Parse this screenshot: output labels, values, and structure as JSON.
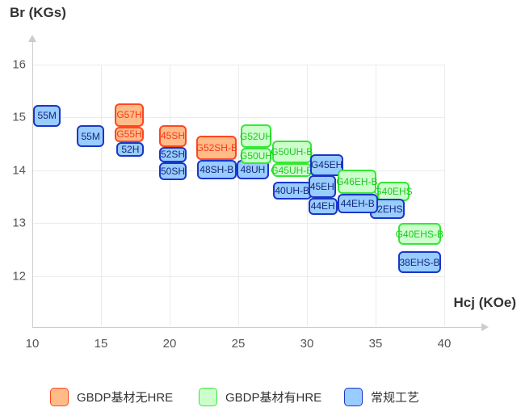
{
  "chart_data": {
    "type": "scatter",
    "title": "",
    "xlabel": "Hcj (KOe)",
    "ylabel": "Br (KGs)",
    "x_ticks": [
      10,
      15,
      20,
      25,
      30,
      35,
      40
    ],
    "y_ticks": [
      16,
      15,
      14,
      13,
      12
    ],
    "xlim": [
      10,
      43
    ],
    "ylim": [
      11.1,
      16.5
    ],
    "grid": true,
    "legend_position": "bottom",
    "series": [
      {
        "key": "gbdp_no_hre",
        "label": "GBDP基材无HRE",
        "fill": "#FFBB88",
        "border": "#FF4720",
        "text": "#F5391B"
      },
      {
        "key": "gbdp_hre",
        "label": "GBDP基材有HRE",
        "fill": "#CCFFCC",
        "border": "#35E835",
        "text": "#1FC722"
      },
      {
        "key": "conventional",
        "label": "常规工艺",
        "fill": "#99CCFF",
        "border": "#1A36C8",
        "text": "#15267B"
      }
    ],
    "grades": [
      {
        "label": "55M",
        "series": "conventional",
        "hcj": [
          10.08,
          12.06
        ],
        "br": [
          14.82,
          15.24
        ]
      },
      {
        "label": "55M",
        "series": "conventional",
        "hcj": [
          13.24,
          15.25
        ],
        "br": [
          14.44,
          14.85
        ]
      },
      {
        "label": "52H",
        "series": "conventional",
        "hcj": [
          16.14,
          18.14
        ],
        "br": [
          14.25,
          14.53
        ]
      },
      {
        "label": "G55H",
        "series": "gbdp_no_hre",
        "hcj": [
          16.02,
          18.1
        ],
        "br": [
          14.53,
          14.83
        ]
      },
      {
        "label": "G57H",
        "series": "gbdp_no_hre",
        "hcj": [
          16.02,
          18.1
        ],
        "br": [
          14.83,
          15.26
        ]
      },
      {
        "label": "50SH",
        "series": "conventional",
        "hcj": [
          19.25,
          21.22
        ],
        "br": [
          13.82,
          14.15
        ]
      },
      {
        "label": "52SH",
        "series": "conventional",
        "hcj": [
          19.25,
          21.22
        ],
        "br": [
          14.15,
          14.44
        ]
      },
      {
        "label": "45SH",
        "series": "gbdp_no_hre",
        "hcj": [
          19.25,
          21.22
        ],
        "br": [
          14.44,
          14.86
        ]
      },
      {
        "label": "48SH-B",
        "series": "conventional",
        "hcj": [
          22.0,
          24.86
        ],
        "br": [
          13.83,
          14.19
        ]
      },
      {
        "label": "G52SH-B",
        "series": "gbdp_no_hre",
        "hcj": [
          21.96,
          24.9
        ],
        "br": [
          14.19,
          14.65
        ]
      },
      {
        "label": "48UH",
        "series": "conventional",
        "hcj": [
          24.88,
          27.24
        ],
        "br": [
          13.83,
          14.2
        ]
      },
      {
        "label": "G50UH",
        "series": "gbdp_hre",
        "hcj": [
          25.15,
          27.44
        ],
        "br": [
          14.12,
          14.42
        ]
      },
      {
        "label": "G52UH",
        "series": "gbdp_hre",
        "hcj": [
          25.15,
          27.44
        ],
        "br": [
          14.42,
          14.87
        ]
      },
      {
        "label": "G40EHS",
        "series": "gbdp_hre",
        "hcj": [
          35.1,
          37.49
        ],
        "br": [
          13.41,
          13.79
        ]
      },
      {
        "label": "42EHS",
        "series": "conventional",
        "hcj": [
          34.61,
          37.1
        ],
        "br": [
          13.08,
          13.46
        ]
      },
      {
        "label": "40UH-B",
        "series": "conventional",
        "hcj": [
          27.51,
          30.34
        ],
        "br": [
          13.45,
          13.79
        ]
      },
      {
        "label": "G45UH-B",
        "series": "gbdp_hre",
        "hcj": [
          27.45,
          30.35
        ],
        "br": [
          13.87,
          14.13
        ]
      },
      {
        "label": "G50UH-B",
        "series": "gbdp_hre",
        "hcj": [
          27.45,
          30.35
        ],
        "br": [
          14.13,
          14.57
        ]
      },
      {
        "label": "G45EH",
        "series": "conventional",
        "hcj": [
          30.25,
          32.65
        ],
        "br": [
          13.89,
          14.31
        ]
      },
      {
        "label": "44EH",
        "series": "conventional",
        "hcj": [
          30.1,
          32.22
        ],
        "br": [
          13.16,
          13.48
        ]
      },
      {
        "label": "45EH",
        "series": "conventional",
        "hcj": [
          30.1,
          32.12
        ],
        "br": [
          13.48,
          13.91
        ]
      },
      {
        "label": "44EH-B",
        "series": "conventional",
        "hcj": [
          32.22,
          35.16
        ],
        "br": [
          13.19,
          13.56
        ]
      },
      {
        "label": "G46EH-B",
        "series": "gbdp_hre",
        "hcj": [
          32.22,
          35.06
        ],
        "br": [
          13.56,
          14.01
        ]
      },
      {
        "label": "G40EHS-B",
        "series": "gbdp_hre",
        "hcj": [
          36.63,
          39.76
        ],
        "br": [
          12.59,
          13.0
        ]
      },
      {
        "label": "38EHS-B",
        "series": "conventional",
        "hcj": [
          36.66,
          39.75
        ],
        "br": [
          12.05,
          12.47
        ]
      }
    ]
  },
  "legend": {
    "items": [
      {
        "series": "gbdp_no_hre",
        "label": "GBDP基材无HRE"
      },
      {
        "series": "gbdp_hre",
        "label": "GBDP基材有HRE"
      },
      {
        "series": "conventional",
        "label": "常规工艺"
      }
    ]
  },
  "axis": {
    "line_color": "#cccccc",
    "grid_color": "#ebebeb",
    "tick_color": "#555555",
    "title_color": "#333333"
  }
}
